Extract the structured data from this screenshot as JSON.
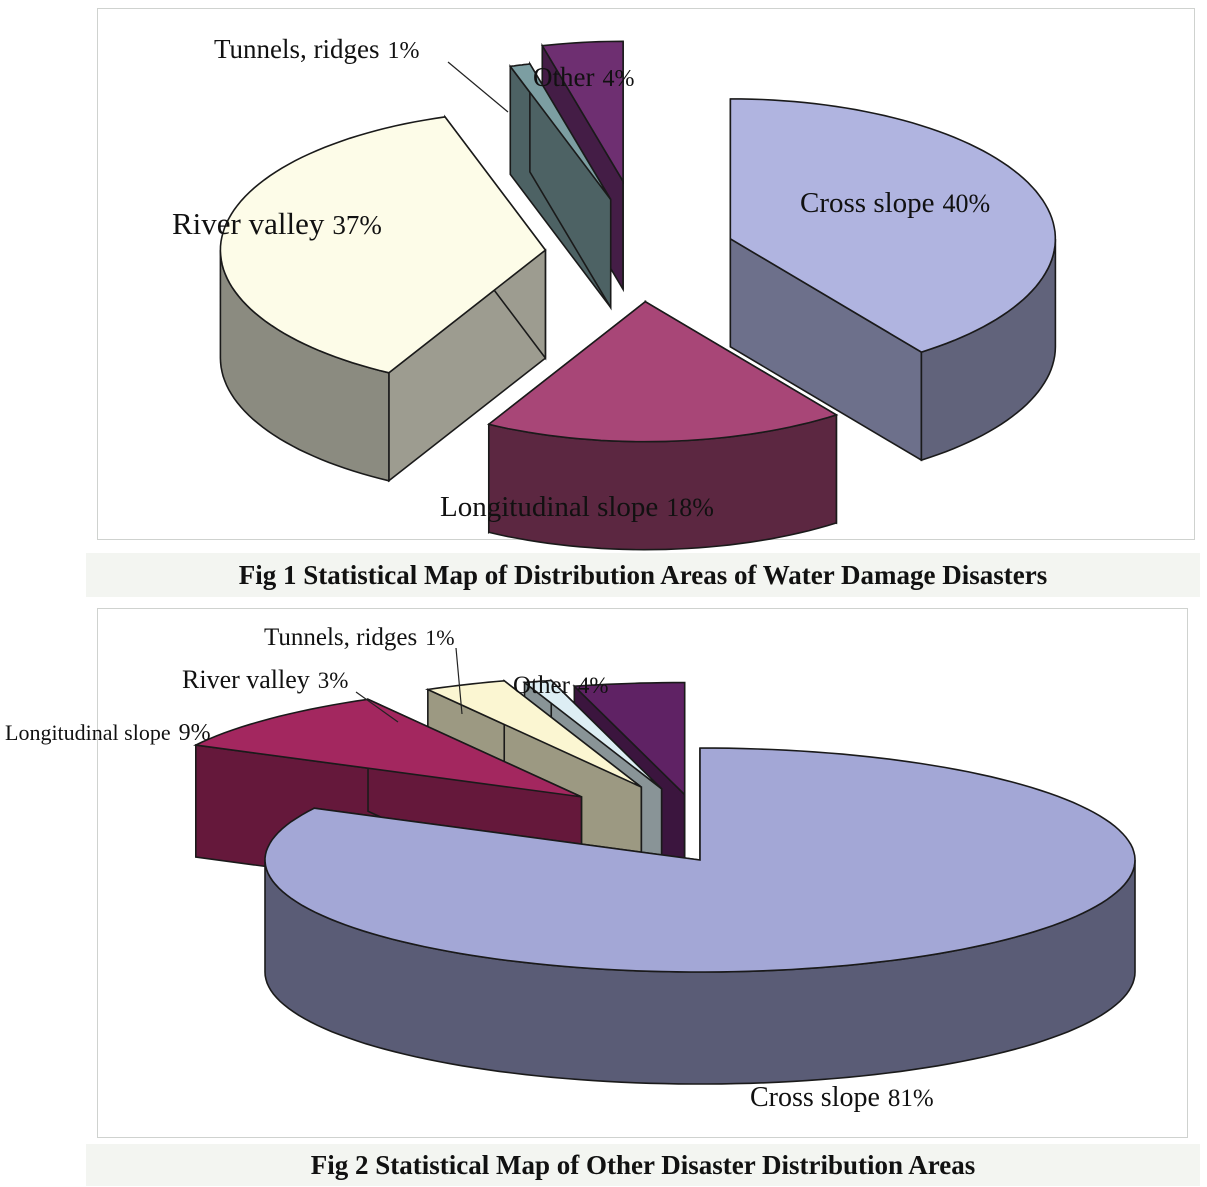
{
  "figures": [
    {
      "caption": "Fig 1 Statistical Map of Distribution Areas of Water Damage Disasters",
      "chart_data": {
        "type": "pie",
        "categories": [
          "Cross slope",
          "Longitudinal slope",
          "River valley",
          "Tunnels, ridges",
          "Other"
        ],
        "values": [
          40,
          18,
          37,
          1,
          4
        ],
        "value_labels": [
          "40%",
          "18%",
          "37%",
          "1%",
          "4%"
        ],
        "colors": [
          "#b0b4e0",
          "#a84677",
          "#fdfce8",
          "#7c9ea2",
          "#6e2f71"
        ],
        "style": "3d-exploded"
      }
    },
    {
      "caption": "Fig 2 Statistical Map of Other Disaster Distribution Areas",
      "chart_data": {
        "type": "pie",
        "categories": [
          "Cross slope",
          "Longitudinal slope",
          "River valley",
          "Tunnels, ridges",
          "Other"
        ],
        "values": [
          81,
          9,
          3,
          1,
          4
        ],
        "value_labels": [
          "81%",
          "9%",
          "3%",
          "1%",
          "4%"
        ],
        "colors": [
          "#a3a7d6",
          "#a3275f",
          "#fbf6d2",
          "#ddeef4",
          "#5f2264"
        ],
        "style": "3d-exploded"
      }
    }
  ]
}
